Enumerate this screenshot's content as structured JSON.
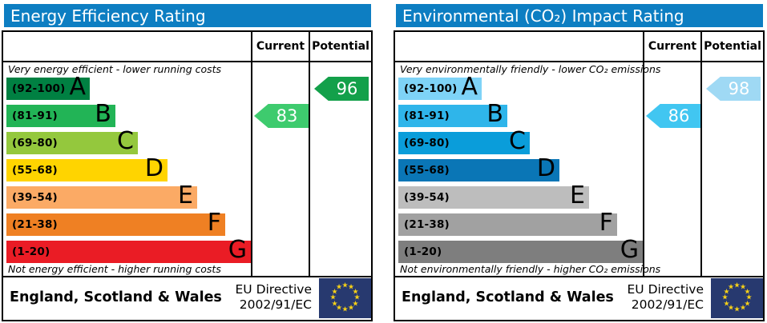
{
  "colors": {
    "header_bg": "#0d7ec2",
    "border": "#000000"
  },
  "eu_flag": {
    "background": "#27396f",
    "star_color": "#f7d117"
  },
  "panels": [
    {
      "title": "Energy Efficiency Rating",
      "columns": {
        "current": "Current",
        "potential": "Potential"
      },
      "top_caption": "Very energy efficient - lower running costs",
      "bottom_caption": "Not energy efficient - higher running costs",
      "bands": [
        {
          "range": "(92-100)",
          "letter": "A",
          "color": "#008042"
        },
        {
          "range": "(81-91)",
          "letter": "B",
          "color": "#22b456"
        },
        {
          "range": "(69-80)",
          "letter": "C",
          "color": "#94c83d"
        },
        {
          "range": "(55-68)",
          "letter": "D",
          "color": "#ffd400"
        },
        {
          "range": "(39-54)",
          "letter": "E",
          "color": "#fbaa65"
        },
        {
          "range": "(21-38)",
          "letter": "F",
          "color": "#ef8023"
        },
        {
          "range": "(1-20)",
          "letter": "G",
          "color": "#ea1c25"
        }
      ],
      "current": {
        "value": "83",
        "color": "#3ecb6e"
      },
      "potential": {
        "value": "96",
        "color": "#13a04a"
      },
      "footer": {
        "region": "England, Scotland & Wales",
        "directive_line1": "EU Directive",
        "directive_line2": "2002/91/EC"
      }
    },
    {
      "title": "Environmental (CO₂) Impact Rating",
      "columns": {
        "current": "Current",
        "potential": "Potential"
      },
      "top_caption": "Very environmentally friendly - lower CO₂ emissions",
      "bottom_caption": "Not environmentally friendly - higher CO₂ emissions",
      "bands": [
        {
          "range": "(92-100)",
          "letter": "A",
          "color": "#7ed3f7"
        },
        {
          "range": "(81-91)",
          "letter": "B",
          "color": "#2fb5ea"
        },
        {
          "range": "(69-80)",
          "letter": "C",
          "color": "#0a9dda"
        },
        {
          "range": "(55-68)",
          "letter": "D",
          "color": "#0a76b6"
        },
        {
          "range": "(39-54)",
          "letter": "E",
          "color": "#bdbdbd"
        },
        {
          "range": "(21-38)",
          "letter": "F",
          "color": "#a1a1a1"
        },
        {
          "range": "(1-20)",
          "letter": "G",
          "color": "#7e7e7e"
        }
      ],
      "current": {
        "value": "86",
        "color": "#41c6f1"
      },
      "potential": {
        "value": "98",
        "color": "#9fd9f4"
      },
      "footer": {
        "region": "England, Scotland & Wales",
        "directive_line1": "EU Directive",
        "directive_line2": "2002/91/EC"
      }
    }
  ],
  "chart_data": [
    {
      "type": "bar",
      "title": "Energy Efficiency Rating",
      "categories": [
        "A (92-100)",
        "B (81-91)",
        "C (69-80)",
        "D (55-68)",
        "E (39-54)",
        "F (21-38)",
        "G (1-20)"
      ],
      "series": [
        {
          "name": "Current",
          "value": 83,
          "band": "B"
        },
        {
          "name": "Potential",
          "value": 96,
          "band": "A"
        }
      ],
      "xlabel": "",
      "ylabel": "",
      "ylim": [
        1,
        100
      ],
      "annotations": [
        "Very energy efficient - lower running costs",
        "Not energy efficient - higher running costs"
      ]
    },
    {
      "type": "bar",
      "title": "Environmental (CO₂) Impact Rating",
      "categories": [
        "A (92-100)",
        "B (81-91)",
        "C (69-80)",
        "D (55-68)",
        "E (39-54)",
        "F (21-38)",
        "G (1-20)"
      ],
      "series": [
        {
          "name": "Current",
          "value": 86,
          "band": "B"
        },
        {
          "name": "Potential",
          "value": 98,
          "band": "A"
        }
      ],
      "xlabel": "",
      "ylabel": "",
      "ylim": [
        1,
        100
      ],
      "annotations": [
        "Very environmentally friendly - lower CO₂ emissions",
        "Not environmentally friendly - higher CO₂ emissions"
      ]
    }
  ]
}
